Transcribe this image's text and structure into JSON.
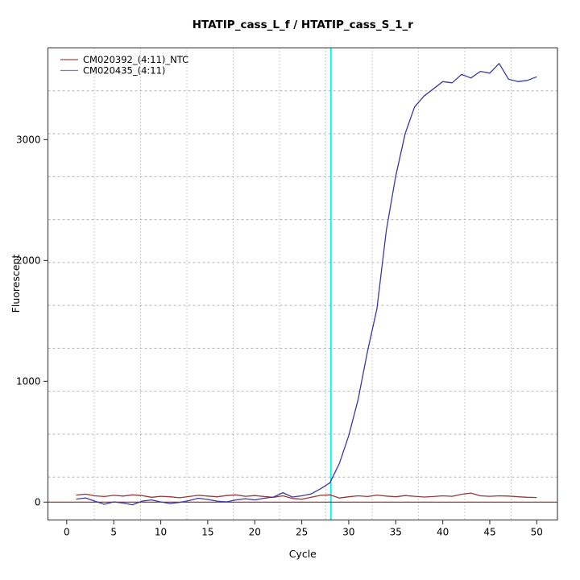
{
  "title": "HTATIP_cass_L_f / HTATIP_cass_S_1_r",
  "chart_data": {
    "type": "line",
    "title": "HTATIP_cass_L_f / HTATIP_cass_S_1_r",
    "xlabel": "Cycle",
    "ylabel": "Fluorescent",
    "x_ticks": [
      0,
      5,
      10,
      15,
      20,
      25,
      30,
      35,
      40,
      45,
      50
    ],
    "y_ticks": [
      0,
      1000,
      2000,
      3000
    ],
    "xlim": [
      -2.0,
      52.2
    ],
    "ylim": [
      -148,
      3759
    ],
    "grid": {
      "nx": 11,
      "ny": 11,
      "on": true
    },
    "legend_position": "top-left",
    "threshold_cycle": 28.1,
    "baseline_value": 0,
    "colors": {
      "ntc_line": "#96383a",
      "sample_line": "#3a3aa2",
      "threshold_vline": "#00eeee",
      "baseline_hline": "#8b2727",
      "grid_vertical": "#9e9e9e",
      "grid_horizontal": "#b5b5b5",
      "panel_border": "#3a3a3a"
    },
    "x": [
      1,
      2,
      3,
      4,
      5,
      6,
      7,
      8,
      9,
      10,
      11,
      12,
      13,
      14,
      15,
      16,
      17,
      18,
      19,
      20,
      21,
      22,
      23,
      24,
      25,
      26,
      27,
      28,
      29,
      30,
      31,
      32,
      33,
      34,
      35,
      36,
      37,
      38,
      39,
      40,
      41,
      42,
      43,
      44,
      45,
      46,
      47,
      48,
      49,
      50
    ],
    "series": [
      {
        "name": "CM020392_(4:11)_NTC",
        "color": "#96383a",
        "legend_color": "#a84b4b",
        "values": [
          58,
          66,
          52,
          46,
          56,
          50,
          60,
          54,
          40,
          48,
          44,
          36,
          46,
          56,
          50,
          44,
          54,
          60,
          48,
          54,
          46,
          40,
          52,
          30,
          24,
          40,
          56,
          60,
          34,
          44,
          52,
          46,
          58,
          50,
          44,
          54,
          48,
          42,
          46,
          52,
          48,
          65,
          75,
          52,
          48,
          52,
          50,
          44,
          40,
          38
        ]
      },
      {
        "name": "CM020435_(4:11)",
        "color": "#3a3aa2",
        "legend_color": "#7b7bc4",
        "values": [
          25,
          35,
          8,
          -18,
          2,
          -8,
          -22,
          8,
          18,
          2,
          -12,
          -2,
          12,
          32,
          22,
          8,
          2,
          18,
          28,
          18,
          32,
          42,
          78,
          42,
          52,
          68,
          110,
          160,
          320,
          550,
          850,
          1250,
          1600,
          2250,
          2700,
          3050,
          3270,
          3360,
          3420,
          3480,
          3470,
          3540,
          3510,
          3565,
          3550,
          3630,
          3500,
          3480,
          3490,
          3520
        ]
      }
    ]
  }
}
